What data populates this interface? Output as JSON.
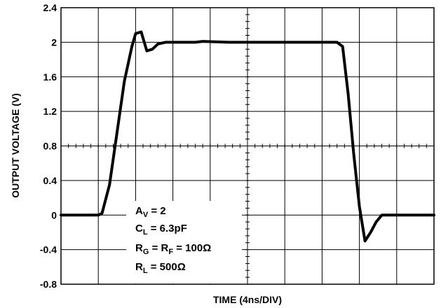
{
  "chart_data": {
    "type": "line",
    "title": "",
    "xlabel": "TIME (4ns/DIV)",
    "ylabel": "OUTPUT VOLTAGE (V)",
    "ylim": [
      -0.8,
      2.4
    ],
    "xlim": [
      0,
      10
    ],
    "x_divisions": 10,
    "y_ticks": [
      2.4,
      2,
      1.6,
      1.2,
      0.8,
      0.4,
      0,
      -0.4,
      -0.8
    ],
    "y_tick_labels": [
      "2.4",
      "2",
      "1.6",
      "1.2",
      "0.8",
      "0.4",
      "0",
      "-0.4",
      "-0.8"
    ],
    "grid": true,
    "legend": "none",
    "series": [
      {
        "color": "#000000",
        "x": [
          0,
          1.0,
          1.1,
          1.3,
          1.5,
          1.7,
          1.9,
          2.0,
          2.15,
          2.3,
          2.45,
          2.6,
          2.8,
          3.0,
          3.3,
          3.6,
          3.8,
          4.5,
          5.0,
          5.5,
          6.0,
          6.5,
          7.0,
          7.2,
          7.4,
          7.55,
          7.7,
          7.85,
          8.0,
          8.15,
          8.3,
          8.45,
          8.6,
          8.8,
          9.0,
          9.5,
          10.0
        ],
        "y": [
          0,
          0,
          0.02,
          0.35,
          0.95,
          1.55,
          1.95,
          2.1,
          2.12,
          1.9,
          1.92,
          1.98,
          2.0,
          2.0,
          2.0,
          2.0,
          2.01,
          2.0,
          2.0,
          2.0,
          2.0,
          2.0,
          2.0,
          2.0,
          2.0,
          1.95,
          1.4,
          0.7,
          0.1,
          -0.3,
          -0.2,
          -0.08,
          0.0,
          0.0,
          0.0,
          0.0,
          0.0
        ]
      }
    ]
  },
  "annotation": {
    "av_main": "A",
    "av_sub": "V",
    "av_rest": " = 2",
    "cl_main": "C",
    "cl_sub": "L",
    "cl_rest": " = 6.3pF",
    "rg_main": "R",
    "rg_sub": "G",
    "rg_mid": " = R",
    "rf_sub": "F",
    "rg_rest": " = 100Ω",
    "rl_main": "R",
    "rl_sub": "L",
    "rl_rest": " = 500Ω"
  }
}
